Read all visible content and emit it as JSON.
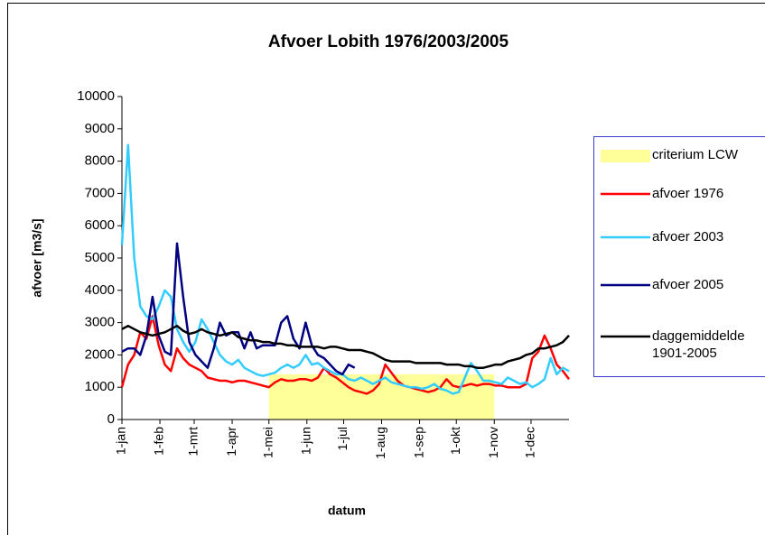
{
  "chart_data": {
    "type": "line",
    "title": "Afvoer Lobith 1976/2003/2005",
    "x_label": "datum",
    "y_label": "afvoer [m3/s]",
    "x": [
      0,
      5,
      10,
      15,
      20,
      25,
      30,
      35,
      40,
      45,
      50,
      55,
      60,
      65,
      70,
      75,
      80,
      85,
      90,
      95,
      100,
      105,
      110,
      115,
      120,
      125,
      130,
      135,
      140,
      145,
      150,
      155,
      160,
      165,
      170,
      175,
      180,
      185,
      190,
      195,
      200,
      205,
      210,
      215,
      220,
      225,
      230,
      235,
      240,
      245,
      250,
      255,
      260,
      265,
      270,
      275,
      280,
      285,
      290,
      295,
      300,
      305,
      310,
      315,
      320,
      325,
      330,
      335,
      340,
      345,
      350,
      355,
      360,
      365
    ],
    "xlim": [
      0,
      365
    ],
    "xticks": [
      {
        "value": 0,
        "label": "1-jan"
      },
      {
        "value": 31,
        "label": "1-feb"
      },
      {
        "value": 59,
        "label": "1-mrt"
      },
      {
        "value": 90,
        "label": "1-apr"
      },
      {
        "value": 120,
        "label": "1-mei"
      },
      {
        "value": 151,
        "label": "1-jun"
      },
      {
        "value": 181,
        "label": "1-jul"
      },
      {
        "value": 212,
        "label": "1-aug"
      },
      {
        "value": 243,
        "label": "1-sep"
      },
      {
        "value": 273,
        "label": "1-okt"
      },
      {
        "value": 304,
        "label": "1-nov"
      },
      {
        "value": 334,
        "label": "1-dec"
      }
    ],
    "ylim": [
      0,
      10000
    ],
    "yticks": [
      0,
      1000,
      2000,
      3000,
      4000,
      5000,
      6000,
      7000,
      8000,
      9000,
      10000
    ],
    "grid": false,
    "legend": "right",
    "series": [
      {
        "name": "criterium LCW",
        "type": "area",
        "color": "#ffff99",
        "x": [
          120,
          304
        ],
        "values": [
          1400,
          1400
        ]
      },
      {
        "name": "afvoer 1976",
        "color": "#ff0000",
        "values": [
          1000,
          1700,
          2000,
          2700,
          2500,
          3200,
          2300,
          1700,
          1500,
          2200,
          1900,
          1700,
          1600,
          1500,
          1300,
          1250,
          1200,
          1200,
          1150,
          1200,
          1200,
          1150,
          1100,
          1050,
          1000,
          1150,
          1250,
          1200,
          1200,
          1250,
          1250,
          1200,
          1300,
          1600,
          1400,
          1300,
          1150,
          1000,
          900,
          850,
          800,
          900,
          1100,
          1700,
          1450,
          1200,
          1050,
          1000,
          950,
          900,
          850,
          900,
          1000,
          1250,
          1050,
          1000,
          1050,
          1100,
          1050,
          1100,
          1100,
          1050,
          1050,
          1000,
          1000,
          1000,
          1100,
          1900,
          2100,
          2600,
          2200,
          1700,
          1500,
          1250
        ]
      },
      {
        "name": "afvoer 2003",
        "color": "#33ccff",
        "values": [
          5400,
          8500,
          5000,
          3500,
          3200,
          3100,
          3500,
          4000,
          3800,
          2800,
          2400,
          2100,
          2400,
          3100,
          2800,
          2400,
          2000,
          1800,
          1700,
          1850,
          1600,
          1500,
          1400,
          1350,
          1400,
          1450,
          1600,
          1700,
          1600,
          1700,
          2000,
          1700,
          1750,
          1600,
          1500,
          1400,
          1400,
          1250,
          1200,
          1300,
          1200,
          1100,
          1200,
          1300,
          1150,
          1100,
          1050,
          1000,
          1000,
          950,
          1000,
          1100,
          950,
          900,
          800,
          850,
          1300,
          1750,
          1500,
          1200,
          1200,
          1150,
          1100,
          1300,
          1200,
          1100,
          1150,
          1000,
          1100,
          1250,
          1900,
          1400,
          1600,
          1500
        ]
      },
      {
        "name": "afvoer 2005",
        "color": "#000080",
        "values": [
          2100,
          2200,
          2200,
          2000,
          2600,
          3800,
          2600,
          2100,
          2000,
          5450,
          3800,
          2400,
          2000,
          1800,
          1600,
          2200,
          3000,
          2600,
          2700,
          2700,
          2200,
          2700,
          2200,
          2300,
          2300,
          2300,
          3000,
          3200,
          2500,
          2200,
          3000,
          2300,
          2000,
          1900,
          1700,
          1500,
          1400,
          1700,
          1600,
          null,
          null,
          null,
          null,
          null,
          null,
          null,
          null,
          null,
          null,
          null,
          null,
          null,
          null,
          null,
          null,
          null,
          null,
          null,
          null,
          null,
          null,
          null,
          null,
          null,
          null,
          null,
          null,
          null,
          null,
          null,
          null,
          null,
          null,
          null
        ]
      },
      {
        "name": "daggemiddelde 1901-2005",
        "color": "#000000",
        "values": [
          2800,
          2900,
          2800,
          2700,
          2650,
          2600,
          2650,
          2700,
          2800,
          2900,
          2750,
          2650,
          2700,
          2800,
          2700,
          2650,
          2600,
          2650,
          2700,
          2550,
          2500,
          2450,
          2450,
          2400,
          2400,
          2350,
          2350,
          2300,
          2300,
          2250,
          2250,
          2250,
          2250,
          2200,
          2250,
          2250,
          2200,
          2150,
          2150,
          2150,
          2100,
          2050,
          1950,
          1850,
          1800,
          1800,
          1800,
          1800,
          1750,
          1750,
          1750,
          1750,
          1750,
          1700,
          1700,
          1700,
          1650,
          1650,
          1600,
          1600,
          1650,
          1700,
          1700,
          1800,
          1850,
          1900,
          2000,
          2050,
          2200,
          2200,
          2250,
          2300,
          2400,
          2600
        ]
      }
    ]
  }
}
